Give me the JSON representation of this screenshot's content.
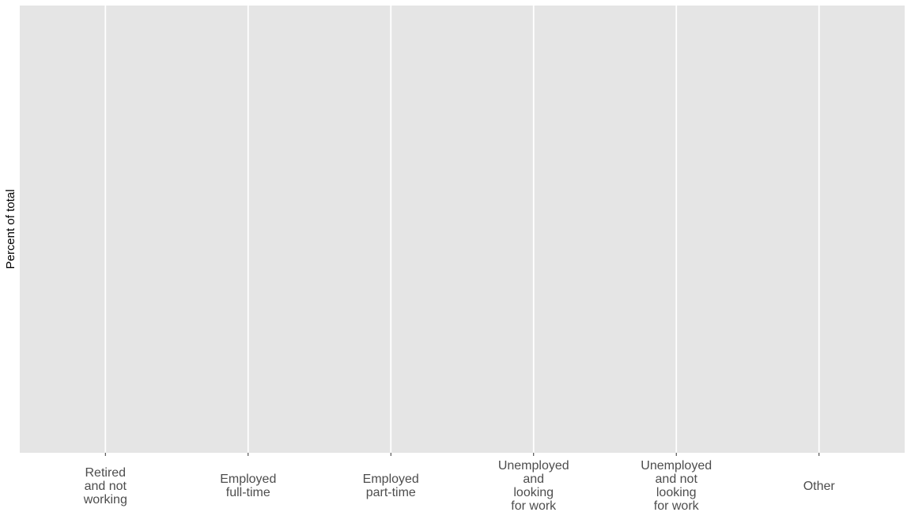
{
  "chart_data": {
    "type": "bar",
    "ylabel": "Percent of total",
    "categories": [
      "Retired\nand not\nworking",
      "Employed\nfull-time",
      "Employed\npart-time",
      "Unemployed\nand\nlooking\nfor work",
      "Unemployed\nand not\nlooking\nfor work",
      "Other"
    ],
    "grid": true
  }
}
